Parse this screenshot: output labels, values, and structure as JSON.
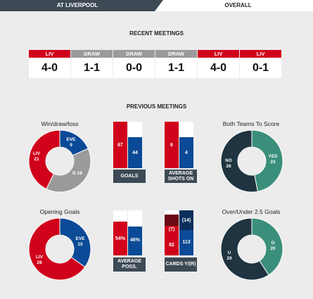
{
  "tabs": {
    "active": "AT LIVERPOOL",
    "other": "OVERALL"
  },
  "colors": {
    "liv": "#d0021b",
    "eve": "#0b4a96",
    "draw": "#9a9a9a",
    "yes": "#3a8f7a",
    "no": "#1f3340"
  },
  "recent": {
    "title": "RECENT MEETINGS",
    "items": [
      {
        "label": "LIV",
        "score": "4-0",
        "color": "#d0021b"
      },
      {
        "label": "DRAW",
        "score": "1-1",
        "color": "#9a9a9a"
      },
      {
        "label": "DRAW",
        "score": "0-0",
        "color": "#9a9a9a"
      },
      {
        "label": "DRAW",
        "score": "1-1",
        "color": "#9a9a9a"
      },
      {
        "label": "LIV",
        "score": "4-0",
        "color": "#d0021b"
      },
      {
        "label": "LIV",
        "score": "0-1",
        "color": "#d0021b"
      }
    ]
  },
  "previous": {
    "title": "PREVIOUS MEETINGS",
    "wdl": {
      "title": "Win/draw/loss",
      "liv_label": "LIV",
      "liv": 21,
      "eve_label": "EVE",
      "eve": 9,
      "draw_label": "D",
      "draw": 19
    },
    "btts": {
      "title": "Both Teams To Score",
      "yes_label": "YES",
      "yes": 23,
      "no_label": "NO",
      "no": 26
    },
    "opening": {
      "title": "Opening Goals",
      "liv_label": "LIV",
      "liv": 28,
      "eve_label": "EVE",
      "eve": 15
    },
    "overunder": {
      "title": "Over/Under 2.5 Goals",
      "o_label": "O",
      "o": 20,
      "u_label": "U",
      "u": 29
    },
    "goals": {
      "label": "GOALS",
      "liv": "67",
      "eve": "44",
      "liv_frac": 0.6,
      "eve_frac": 0.4
    },
    "shots": {
      "label": "AVERAGE SHOTS ON",
      "liv": "6",
      "eve": "4",
      "liv_frac": 0.6,
      "eve_frac": 0.4
    },
    "poss": {
      "label": "AVERAGE POSS.",
      "liv": "54%",
      "eve": "46%",
      "liv_frac": 0.54,
      "eve_frac": 0.46
    },
    "cards": {
      "label": "CARDS Y/(R)",
      "liv_y": "82",
      "liv_r": "(7)",
      "eve_y": "113",
      "eve_r": "(14)"
    }
  }
}
